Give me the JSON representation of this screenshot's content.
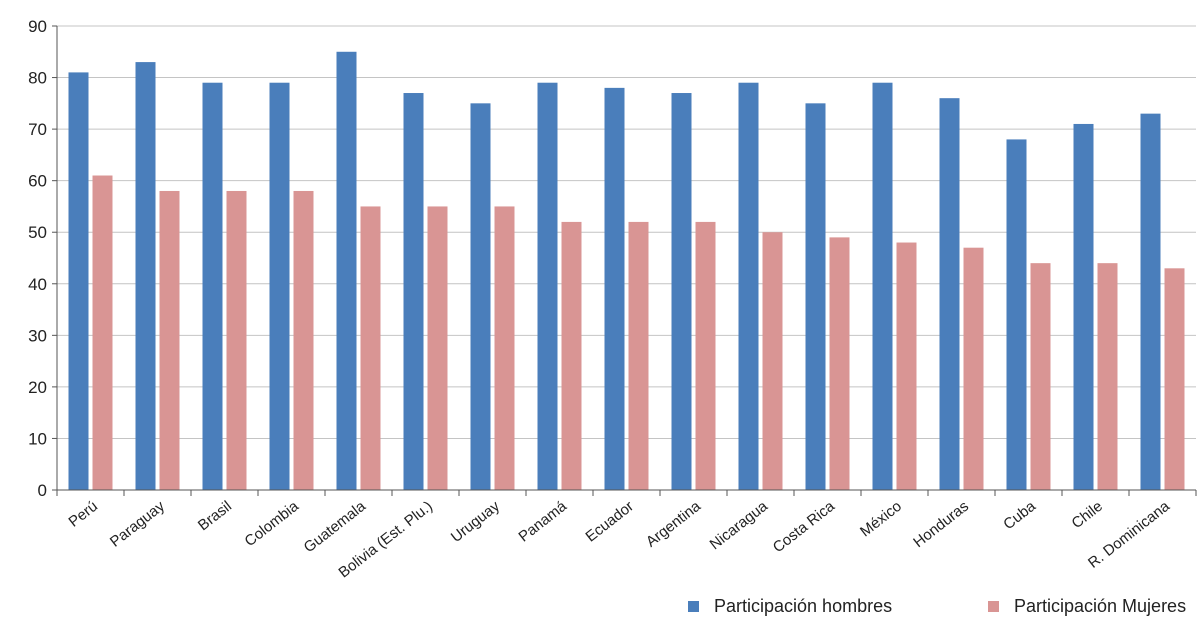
{
  "chart_data": {
    "type": "bar",
    "categories": [
      "Perú",
      "Paraguay",
      "Brasil",
      "Colombia",
      "Guatemala",
      "Bolivia (Est. Plu.)",
      "Uruguay",
      "Panamá",
      "Ecuador",
      "Argentina",
      "Nicaragua",
      "Costa Rica",
      "México",
      "Honduras",
      "Cuba",
      "Chile",
      "R. Dominicana"
    ],
    "series": [
      {
        "name": "Participación hombres",
        "color": "#4a7ebb",
        "values": [
          81,
          83,
          79,
          79,
          85,
          77,
          75,
          79,
          78,
          77,
          79,
          75,
          79,
          76,
          68,
          71,
          73
        ]
      },
      {
        "name": "Participación Mujeres",
        "color": "#d99594",
        "values": [
          61,
          58,
          58,
          58,
          55,
          55,
          55,
          52,
          52,
          52,
          50,
          49,
          48,
          47,
          44,
          44,
          43
        ]
      }
    ],
    "title": "",
    "xlabel": "",
    "ylabel": "",
    "ylim": [
      0,
      90
    ],
    "yticks": [
      0,
      10,
      20,
      30,
      40,
      50,
      60,
      70,
      80,
      90
    ],
    "grid": "horizontal",
    "legend": "bottom-right"
  }
}
